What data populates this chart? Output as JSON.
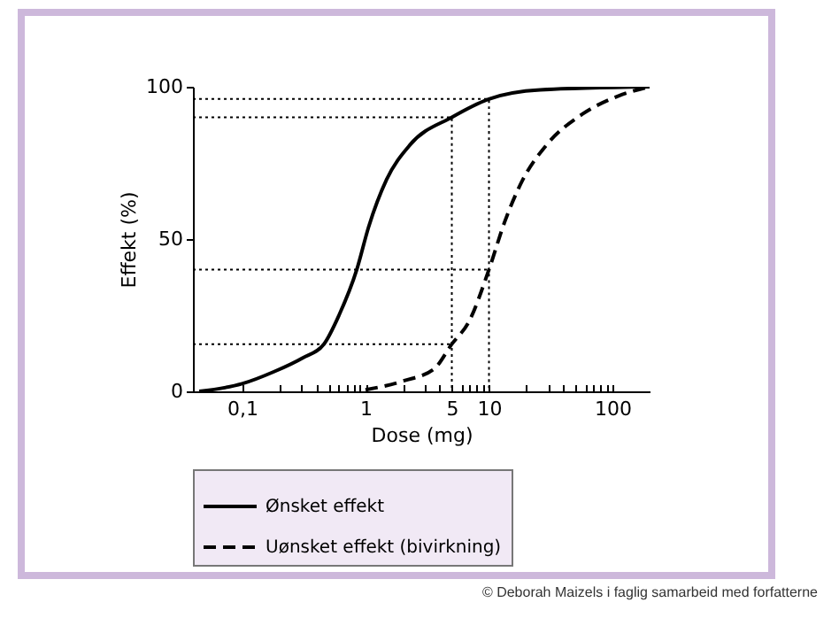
{
  "chart_data": {
    "type": "line",
    "xlabel": "Dose (mg)",
    "ylabel": "Effekt (%)",
    "log": "x",
    "legend": "bottom",
    "xlim": [
      0.04,
      200
    ],
    "ylim": [
      0,
      100
    ],
    "xticks": [
      {
        "value": 0.1,
        "label": "0,1"
      },
      {
        "value": 0.2,
        "label": null
      },
      {
        "value": 0.3,
        "label": null
      },
      {
        "value": 0.4,
        "label": null
      },
      {
        "value": 0.5,
        "label": null
      },
      {
        "value": 0.6,
        "label": null
      },
      {
        "value": 0.7,
        "label": null
      },
      {
        "value": 0.8,
        "label": null
      },
      {
        "value": 0.9,
        "label": null
      },
      1,
      {
        "value": 2,
        "label": null
      },
      {
        "value": 3,
        "label": null
      },
      {
        "value": 4,
        "label": null
      },
      5,
      {
        "value": 6,
        "label": null
      },
      {
        "value": 7,
        "label": null
      },
      {
        "value": 8,
        "label": null
      },
      {
        "value": 9,
        "label": null
      },
      10,
      {
        "value": 20,
        "label": null
      },
      {
        "value": 30,
        "label": null
      },
      {
        "value": 40,
        "label": null
      },
      {
        "value": 50,
        "label": null
      },
      {
        "value": 60,
        "label": null
      },
      {
        "value": 70,
        "label": null
      },
      {
        "value": 80,
        "label": null
      },
      {
        "value": 90,
        "label": null
      },
      100
    ],
    "yticks": [
      0,
      50,
      100
    ],
    "series": [
      {
        "name": "Ønsket effekt",
        "color": "#000000",
        "line_style": "solid",
        "x": [
          0.045,
          0.1,
          0.18,
          0.31,
          0.46,
          0.61,
          0.85,
          1.06,
          1.48,
          2.3,
          5,
          10,
          26,
          200
        ],
        "values": [
          0,
          2.5,
          6.4,
          11,
          15.5,
          25,
          40,
          54,
          69.5,
          81,
          90,
          96,
          99,
          100
        ]
      },
      {
        "name": "Uønsket effekt (bivirkning)",
        "color": "#000000",
        "line_style": "dashed",
        "x": [
          1,
          2.06,
          3.6,
          5,
          6.9,
          10,
          13.5,
          18.8,
          29.4,
          57,
          112,
          200
        ],
        "values": [
          0.5,
          3.5,
          7.4,
          15.5,
          23,
          40,
          56,
          69.5,
          81,
          91,
          97,
          100
        ]
      },
      {
        "color": "#000000",
        "line_style": "dotted",
        "x": [
          0.04,
          10,
          10
        ],
        "values": [
          96,
          96,
          0
        ]
      },
      {
        "color": "#000000",
        "line_style": "dotted",
        "x": [
          0.04,
          5,
          5
        ],
        "values": [
          90,
          90,
          0
        ]
      },
      {
        "color": "#000000",
        "line_style": "dotted",
        "x": [
          0.04,
          10
        ],
        "values": [
          40,
          40
        ]
      },
      {
        "color": "#000000",
        "line_style": "dotted",
        "x": [
          0.04,
          5
        ],
        "values": [
          15.5,
          15.5
        ]
      }
    ],
    "annotations": [
      "© Deborah Maizels i faglig samarbeid med forfatterne"
    ]
  }
}
